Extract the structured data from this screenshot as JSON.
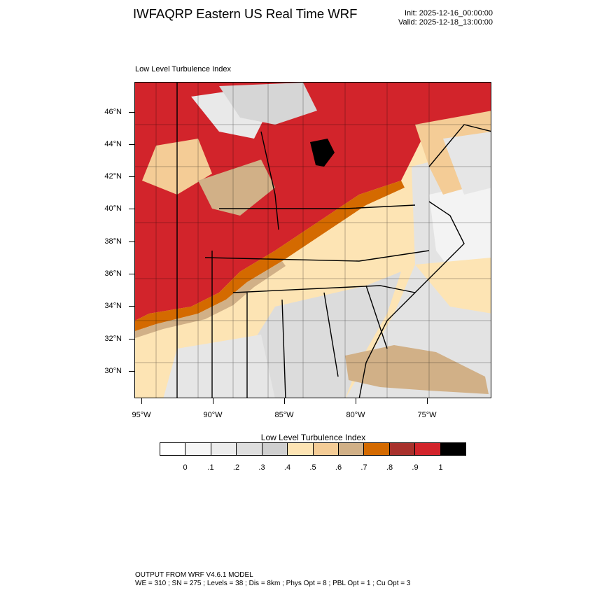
{
  "header": {
    "title": "IWFAQRP Eastern US Real Time WRF",
    "init": "Init: 2025-12-16_00:00:00",
    "valid": "Valid: 2025-12-18_13:00:00"
  },
  "map": {
    "label": "Low Level Turbulence Index",
    "lat_labels": [
      "46°N",
      "44°N",
      "42°N",
      "40°N",
      "38°N",
      "36°N",
      "34°N",
      "32°N",
      "30°N"
    ],
    "lon_labels": [
      "95°W",
      "90°W",
      "85°W",
      "80°W",
      "75°W"
    ]
  },
  "legend": {
    "title": "Low Level Turbulence Index",
    "colors": [
      "#ffffff",
      "#f6f6f6",
      "#ececec",
      "#dedede",
      "#cfcfcf",
      "#fde4b4",
      "#f4cc96",
      "#d1b087",
      "#d46a00",
      "#a8312c",
      "#d2242b",
      "#000000"
    ],
    "labels": [
      "0",
      ".1",
      ".2",
      ".3",
      ".4",
      ".5",
      ".6",
      ".7",
      ".8",
      ".9",
      "1"
    ]
  },
  "footer": {
    "line1": "OUTPUT FROM WRF V4.6.1 MODEL",
    "line2": "WE = 310 ; SN = 275 ; Levels = 38 ; Dis = 8km ; Phys Opt = 8 ; PBL Opt = 1 ; Cu Opt = 3"
  }
}
